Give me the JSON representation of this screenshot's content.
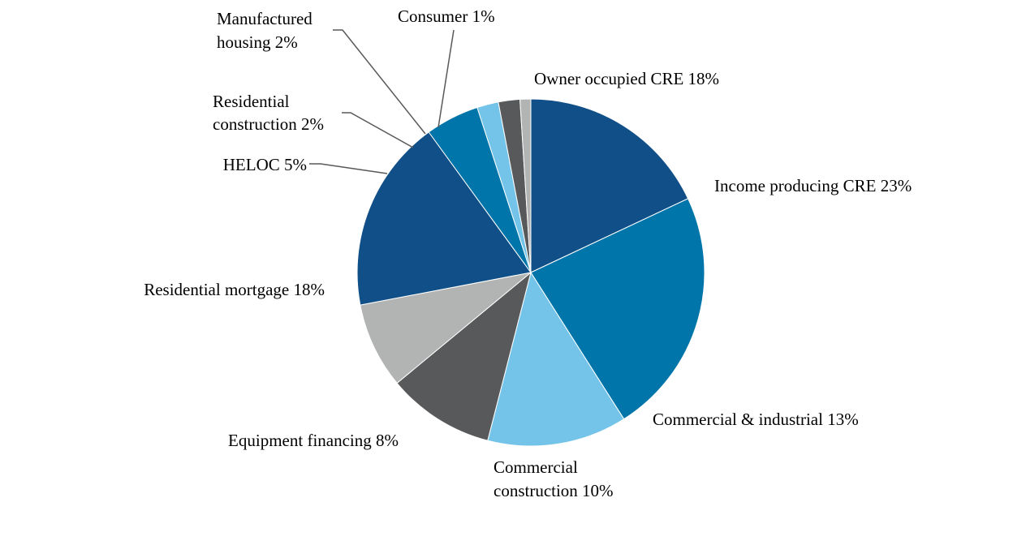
{
  "chart_data": {
    "type": "pie",
    "title": "",
    "start": "12 o'clock",
    "direction": "clockwise",
    "slices": [
      {
        "name": "Owner occupied CRE",
        "value": 18,
        "label": "Owner occupied CRE 18%",
        "color": "#104F87"
      },
      {
        "name": "Income producing CRE",
        "value": 23,
        "label": "Income producing CRE 23%",
        "color": "#0075AA"
      },
      {
        "name": "Commercial & industrial",
        "value": 13,
        "label": "Commercial & industrial 13%",
        "color": "#74C4EA"
      },
      {
        "name": "Commercial construction",
        "value": 10,
        "label_lines": [
          "Commercial",
          "construction 10%"
        ],
        "color": "#58595B"
      },
      {
        "name": "Equipment financing",
        "value": 8,
        "label": "Equipment financing 8%",
        "color": "#B2B4B3"
      },
      {
        "name": "Residential mortgage",
        "value": 18,
        "label": "Residential mortgage 18%",
        "color": "#104F87"
      },
      {
        "name": "HELOC",
        "value": 5,
        "label": "HELOC 5%",
        "color": "#0075AA"
      },
      {
        "name": "Residential construction",
        "value": 2,
        "label_lines": [
          "Residential",
          "construction 2%"
        ],
        "color": "#74C4EA"
      },
      {
        "name": "Manufactured housing",
        "value": 2,
        "label_lines": [
          "Manufactured",
          "housing 2%"
        ],
        "color": "#58595B"
      },
      {
        "name": "Consumer",
        "value": 1,
        "label": "Consumer 1%",
        "color": "#B2B4B3"
      }
    ]
  }
}
